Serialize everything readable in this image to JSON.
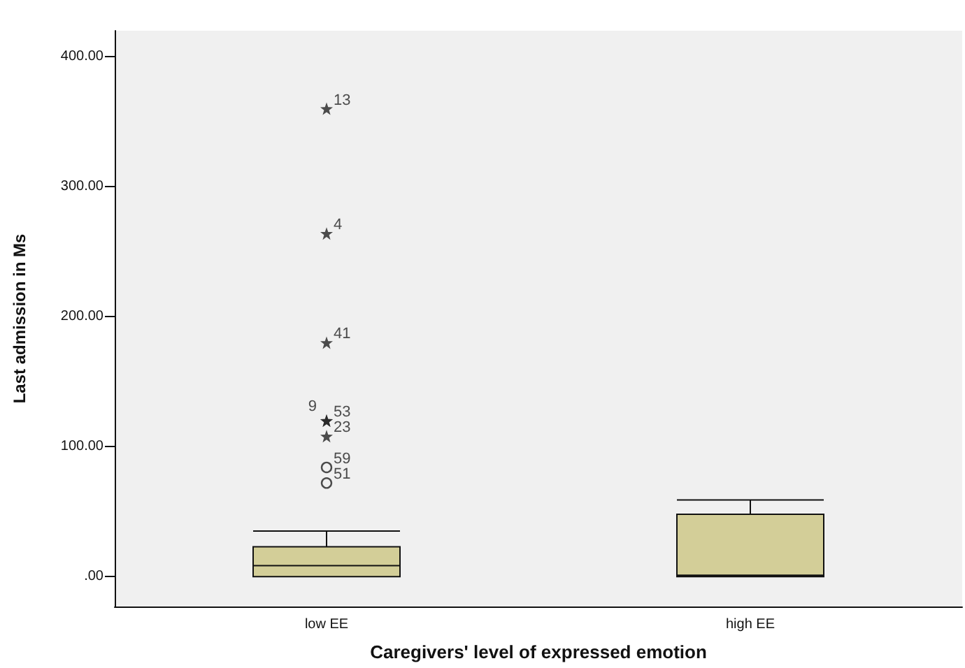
{
  "chart_data": {
    "type": "box",
    "xlabel": "Caregivers' level of expressed emotion",
    "ylabel": "Last admission in Ms",
    "categories": [
      "low EE",
      "high EE"
    ],
    "boxes": [
      {
        "low": 0,
        "q1": 0,
        "median": 8.5,
        "q3": 23,
        "high": 35,
        "outliers": [
          360,
          264,
          180,
          120,
          120,
          108,
          84,
          72
        ]
      },
      {
        "low": 0,
        "q1": 0,
        "median": 1,
        "q3": 48,
        "high": 59
      }
    ],
    "color": "#d3ce98",
    "ylim": [
      -23,
      420
    ],
    "yticks": [
      {
        "value": 0,
        "label": ".00"
      },
      {
        "value": 100,
        "label": "100.00"
      },
      {
        "value": 200,
        "label": "200.00"
      },
      {
        "value": 300,
        "label": "300.00"
      },
      {
        "value": 400,
        "label": "400.00"
      }
    ],
    "annotations": [
      "13",
      "4",
      "41",
      "53",
      "9",
      "23",
      "59",
      "51"
    ],
    "grid": false
  }
}
